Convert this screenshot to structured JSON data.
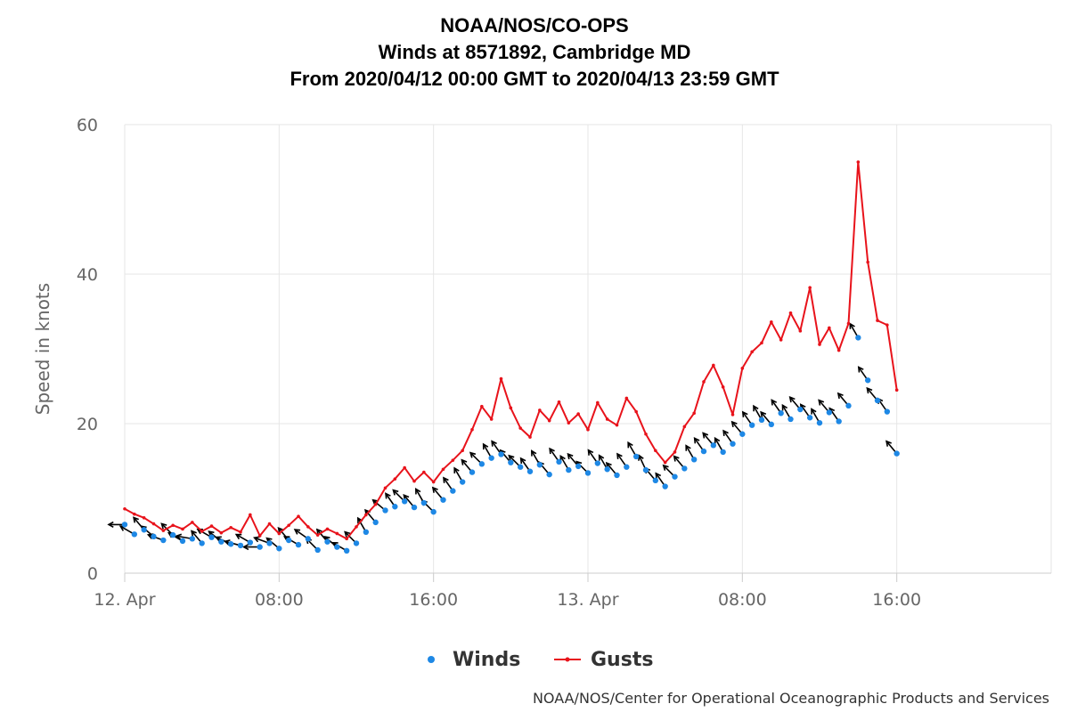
{
  "chart_data": {
    "type": "line",
    "title_lines": [
      "NOAA/NOS/CO-OPS",
      "Winds at 8571892, Cambridge MD",
      "From 2020/04/12 00:00 GMT to 2020/04/13 23:59 GMT"
    ],
    "ylabel": "Speed in knots",
    "xlabel": "",
    "ylim": [
      0,
      60
    ],
    "y_ticks": [
      0,
      20,
      40,
      60
    ],
    "x_range": [
      "2020-04-12 00:00",
      "2020-04-14 00:00"
    ],
    "x_tick_labels": [
      "12. Apr",
      "08:00",
      "16:00",
      "13. Apr",
      "08:00",
      "16:00"
    ],
    "x_tick_times": [
      "2020-04-12 00:00",
      "2020-04-12 08:00",
      "2020-04-12 16:00",
      "2020-04-13 00:00",
      "2020-04-13 08:00",
      "2020-04-13 16:00"
    ],
    "grid": true,
    "legend_position": "bottom-center",
    "series": [
      {
        "name": "Winds",
        "style": "markers",
        "color": "#1e88e5",
        "points": [
          [
            "2020-04-12 00:00",
            6.5
          ],
          [
            "2020-04-12 00:30",
            5.2
          ],
          [
            "2020-04-12 01:00",
            5.8
          ],
          [
            "2020-04-12 01:30",
            4.9
          ],
          [
            "2020-04-12 02:00",
            4.4
          ],
          [
            "2020-04-12 02:30",
            5.1
          ],
          [
            "2020-04-12 03:00",
            4.3
          ],
          [
            "2020-04-12 03:30",
            4.6
          ],
          [
            "2020-04-12 04:00",
            4.0
          ],
          [
            "2020-04-12 04:30",
            4.8
          ],
          [
            "2020-04-12 05:00",
            4.2
          ],
          [
            "2020-04-12 05:30",
            3.9
          ],
          [
            "2020-04-12 06:00",
            3.7
          ],
          [
            "2020-04-12 06:30",
            4.1
          ],
          [
            "2020-04-12 07:00",
            3.5
          ],
          [
            "2020-04-12 07:30",
            4.0
          ],
          [
            "2020-04-12 08:00",
            3.3
          ],
          [
            "2020-04-12 08:30",
            4.4
          ],
          [
            "2020-04-12 09:00",
            3.8
          ],
          [
            "2020-04-12 09:30",
            4.6
          ],
          [
            "2020-04-12 10:00",
            3.1
          ],
          [
            "2020-04-12 10:30",
            4.2
          ],
          [
            "2020-04-12 11:00",
            3.5
          ],
          [
            "2020-04-12 11:30",
            3.0
          ],
          [
            "2020-04-12 12:00",
            4.0
          ],
          [
            "2020-04-12 12:30",
            5.5
          ],
          [
            "2020-04-12 13:00",
            6.8
          ],
          [
            "2020-04-12 13:30",
            8.4
          ],
          [
            "2020-04-12 14:00",
            8.9
          ],
          [
            "2020-04-12 14:30",
            9.6
          ],
          [
            "2020-04-12 15:00",
            8.8
          ],
          [
            "2020-04-12 15:30",
            9.4
          ],
          [
            "2020-04-12 16:00",
            8.2
          ],
          [
            "2020-04-12 16:30",
            9.8
          ],
          [
            "2020-04-12 17:00",
            11.0
          ],
          [
            "2020-04-12 17:30",
            12.2
          ],
          [
            "2020-04-12 18:00",
            13.5
          ],
          [
            "2020-04-12 18:30",
            14.6
          ],
          [
            "2020-04-12 19:00",
            15.4
          ],
          [
            "2020-04-12 19:30",
            15.9
          ],
          [
            "2020-04-12 20:00",
            14.8
          ],
          [
            "2020-04-12 20:30",
            14.2
          ],
          [
            "2020-04-12 21:00",
            13.6
          ],
          [
            "2020-04-12 21:30",
            14.5
          ],
          [
            "2020-04-12 22:00",
            13.2
          ],
          [
            "2020-04-12 22:30",
            14.9
          ],
          [
            "2020-04-12 23:00",
            13.8
          ],
          [
            "2020-04-12 23:30",
            14.3
          ],
          [
            "2020-04-13 00:00",
            13.4
          ],
          [
            "2020-04-13 00:30",
            14.7
          ],
          [
            "2020-04-13 01:00",
            13.9
          ],
          [
            "2020-04-13 01:30",
            13.1
          ],
          [
            "2020-04-13 02:00",
            14.2
          ],
          [
            "2020-04-13 02:30",
            15.6
          ],
          [
            "2020-04-13 03:00",
            13.8
          ],
          [
            "2020-04-13 03:30",
            12.4
          ],
          [
            "2020-04-13 04:00",
            11.6
          ],
          [
            "2020-04-13 04:30",
            12.9
          ],
          [
            "2020-04-13 05:00",
            14.0
          ],
          [
            "2020-04-13 05:30",
            15.2
          ],
          [
            "2020-04-13 06:00",
            16.3
          ],
          [
            "2020-04-13 06:30",
            17.1
          ],
          [
            "2020-04-13 07:00",
            16.2
          ],
          [
            "2020-04-13 07:30",
            17.3
          ],
          [
            "2020-04-13 08:00",
            18.6
          ],
          [
            "2020-04-13 08:30",
            19.8
          ],
          [
            "2020-04-13 09:00",
            20.5
          ],
          [
            "2020-04-13 09:30",
            19.9
          ],
          [
            "2020-04-13 10:00",
            21.4
          ],
          [
            "2020-04-13 10:30",
            20.6
          ],
          [
            "2020-04-13 11:00",
            21.9
          ],
          [
            "2020-04-13 11:30",
            20.8
          ],
          [
            "2020-04-13 12:00",
            20.1
          ],
          [
            "2020-04-13 12:30",
            21.5
          ],
          [
            "2020-04-13 13:00",
            20.3
          ],
          [
            "2020-04-13 13:30",
            22.4
          ],
          [
            "2020-04-13 14:00",
            31.5
          ],
          [
            "2020-04-13 14:30",
            25.8
          ],
          [
            "2020-04-13 15:00",
            23.1
          ],
          [
            "2020-04-13 15:30",
            21.6
          ],
          [
            "2020-04-13 16:00",
            16.0
          ]
        ]
      },
      {
        "name": "Gusts",
        "style": "line-with-markers",
        "color": "#e8131b",
        "points": [
          [
            "2020-04-12 00:00",
            8.6
          ],
          [
            "2020-04-12 00:30",
            7.9
          ],
          [
            "2020-04-12 01:00",
            7.4
          ],
          [
            "2020-04-12 01:30",
            6.6
          ],
          [
            "2020-04-12 02:00",
            5.7
          ],
          [
            "2020-04-12 02:30",
            6.4
          ],
          [
            "2020-04-12 03:00",
            5.9
          ],
          [
            "2020-04-12 03:30",
            6.8
          ],
          [
            "2020-04-12 04:00",
            5.6
          ],
          [
            "2020-04-12 04:30",
            6.3
          ],
          [
            "2020-04-12 05:00",
            5.4
          ],
          [
            "2020-04-12 05:30",
            6.1
          ],
          [
            "2020-04-12 06:00",
            5.5
          ],
          [
            "2020-04-12 06:30",
            7.8
          ],
          [
            "2020-04-12 07:00",
            5.0
          ],
          [
            "2020-04-12 07:30",
            6.6
          ],
          [
            "2020-04-12 08:00",
            5.3
          ],
          [
            "2020-04-12 08:30",
            6.4
          ],
          [
            "2020-04-12 09:00",
            7.6
          ],
          [
            "2020-04-12 09:30",
            6.2
          ],
          [
            "2020-04-12 10:00",
            5.1
          ],
          [
            "2020-04-12 10:30",
            5.9
          ],
          [
            "2020-04-12 11:00",
            5.3
          ],
          [
            "2020-04-12 11:30",
            4.6
          ],
          [
            "2020-04-12 12:00",
            6.2
          ],
          [
            "2020-04-12 12:30",
            7.8
          ],
          [
            "2020-04-12 13:00",
            9.2
          ],
          [
            "2020-04-12 13:30",
            11.4
          ],
          [
            "2020-04-12 14:00",
            12.6
          ],
          [
            "2020-04-12 14:30",
            14.1
          ],
          [
            "2020-04-12 15:00",
            12.3
          ],
          [
            "2020-04-12 15:30",
            13.5
          ],
          [
            "2020-04-12 16:00",
            12.2
          ],
          [
            "2020-04-12 16:30",
            13.9
          ],
          [
            "2020-04-12 17:00",
            15.1
          ],
          [
            "2020-04-12 17:30",
            16.4
          ],
          [
            "2020-04-12 18:00",
            19.2
          ],
          [
            "2020-04-12 18:30",
            22.3
          ],
          [
            "2020-04-12 19:00",
            20.6
          ],
          [
            "2020-04-12 19:30",
            26.0
          ],
          [
            "2020-04-12 20:00",
            22.1
          ],
          [
            "2020-04-12 20:30",
            19.4
          ],
          [
            "2020-04-12 21:00",
            18.2
          ],
          [
            "2020-04-12 21:30",
            21.8
          ],
          [
            "2020-04-12 22:00",
            20.4
          ],
          [
            "2020-04-12 22:30",
            22.9
          ],
          [
            "2020-04-12 23:00",
            20.1
          ],
          [
            "2020-04-12 23:30",
            21.3
          ],
          [
            "2020-04-13 00:00",
            19.2
          ],
          [
            "2020-04-13 00:30",
            22.8
          ],
          [
            "2020-04-13 01:00",
            20.6
          ],
          [
            "2020-04-13 01:30",
            19.8
          ],
          [
            "2020-04-13 02:00",
            23.4
          ],
          [
            "2020-04-13 02:30",
            21.6
          ],
          [
            "2020-04-13 03:00",
            18.6
          ],
          [
            "2020-04-13 03:30",
            16.4
          ],
          [
            "2020-04-13 04:00",
            14.8
          ],
          [
            "2020-04-13 04:30",
            16.2
          ],
          [
            "2020-04-13 05:00",
            19.6
          ],
          [
            "2020-04-13 05:30",
            21.4
          ],
          [
            "2020-04-13 06:00",
            25.6
          ],
          [
            "2020-04-13 06:30",
            27.8
          ],
          [
            "2020-04-13 07:00",
            24.9
          ],
          [
            "2020-04-13 07:30",
            21.2
          ],
          [
            "2020-04-13 08:00",
            27.4
          ],
          [
            "2020-04-13 08:30",
            29.6
          ],
          [
            "2020-04-13 09:00",
            30.8
          ],
          [
            "2020-04-13 09:30",
            33.6
          ],
          [
            "2020-04-13 10:00",
            31.2
          ],
          [
            "2020-04-13 10:30",
            34.8
          ],
          [
            "2020-04-13 11:00",
            32.4
          ],
          [
            "2020-04-13 11:30",
            38.2
          ],
          [
            "2020-04-13 12:00",
            30.6
          ],
          [
            "2020-04-13 12:30",
            32.8
          ],
          [
            "2020-04-13 13:00",
            29.8
          ],
          [
            "2020-04-13 13:30",
            33.4
          ],
          [
            "2020-04-13 14:00",
            55.0
          ],
          [
            "2020-04-13 14:30",
            41.6
          ],
          [
            "2020-04-13 15:00",
            33.8
          ],
          [
            "2020-04-13 15:30",
            33.2
          ],
          [
            "2020-04-13 16:00",
            24.5
          ]
        ]
      }
    ],
    "wind_direction_arrows": {
      "color": "#000000",
      "directions_deg": [
        270,
        300,
        320,
        310,
        290,
        315,
        300,
        280,
        320,
        300,
        310,
        295,
        285,
        300,
        270,
        290,
        310,
        320,
        300,
        305,
        315,
        320,
        310,
        300,
        315,
        330,
        320,
        310,
        325,
        315,
        320,
        330,
        315,
        320,
        325,
        330,
        320,
        315,
        330,
        325,
        320,
        315,
        325,
        330,
        320,
        325,
        330,
        320,
        315,
        325,
        330,
        320,
        325,
        330,
        335,
        320,
        325,
        315,
        320,
        330,
        325,
        320,
        330,
        325,
        320,
        325,
        330,
        320,
        325,
        330,
        320,
        325,
        330,
        320,
        325,
        320,
        330,
        325,
        320,
        325,
        320
      ]
    },
    "legend": [
      "Winds",
      "Gusts"
    ]
  },
  "credit": "NOAA/NOS/Center for Operational Oceanographic Products and Services"
}
